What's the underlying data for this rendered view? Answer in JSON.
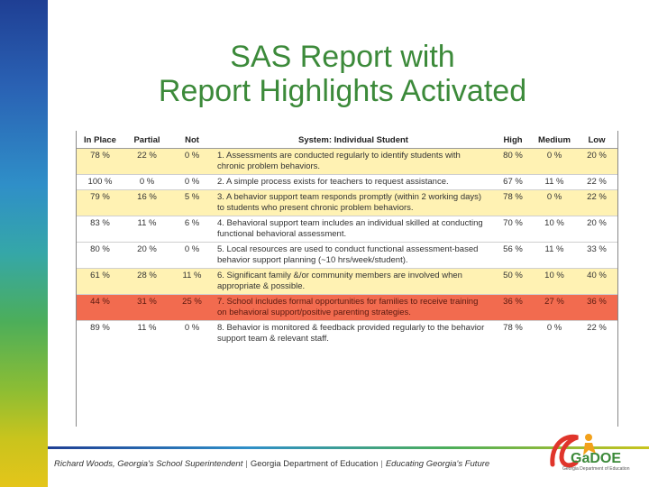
{
  "title_line1": "SAS Report with",
  "title_line2": "Report Highlights Activated",
  "columns": [
    "In Place",
    "Partial",
    "Not",
    "System: Individual Student",
    "High",
    "Medium",
    "Low"
  ],
  "rows": [
    {
      "in_place": "78 %",
      "partial": "22 %",
      "not": "0 %",
      "system": "1. Assessments are conducted regularly to identify students with chronic problem behaviors.",
      "high": "80 %",
      "medium": "0 %",
      "low": "20 %",
      "color": "yellow"
    },
    {
      "in_place": "100 %",
      "partial": "0 %",
      "not": "0 %",
      "system": "2. A simple process exists for teachers to request assistance.",
      "high": "67 %",
      "medium": "11 %",
      "low": "22 %",
      "color": "white"
    },
    {
      "in_place": "79 %",
      "partial": "16 %",
      "not": "5 %",
      "system": "3. A behavior support team responds promptly (within 2 working days) to students who present chronic problem behaviors.",
      "high": "78 %",
      "medium": "0 %",
      "low": "22 %",
      "color": "yellow"
    },
    {
      "in_place": "83 %",
      "partial": "11 %",
      "not": "6 %",
      "system": "4. Behavioral support team includes an individual skilled at conducting functional behavioral assessment.",
      "high": "70 %",
      "medium": "10 %",
      "low": "20 %",
      "color": "white"
    },
    {
      "in_place": "80 %",
      "partial": "20 %",
      "not": "0 %",
      "system": "5. Local resources are used to conduct functional assessment-based behavior support planning (~10 hrs/week/student).",
      "high": "56 %",
      "medium": "11 %",
      "low": "33 %",
      "color": "white"
    },
    {
      "in_place": "61 %",
      "partial": "28 %",
      "not": "11 %",
      "system": "6. Significant family &/or community members are involved when appropriate & possible.",
      "high": "50 %",
      "medium": "10 %",
      "low": "40 %",
      "color": "yellow"
    },
    {
      "in_place": "44 %",
      "partial": "31 %",
      "not": "25 %",
      "system": "7. School includes formal opportunities for families to receive training on behavioral support/positive parenting strategies.",
      "high": "36 %",
      "medium": "27 %",
      "low": "36 %",
      "color": "red"
    },
    {
      "in_place": "89 %",
      "partial": "11 %",
      "not": "0 %",
      "system": "8. Behavior is monitored & feedback provided regularly to the behavior support team & relevant staff.",
      "high": "78 %",
      "medium": "0 %",
      "low": "22 %",
      "color": "white"
    }
  ],
  "footer": {
    "superintendent": "Richard Woods, Georgia's School Superintendent",
    "separator": "|",
    "department": "Georgia Department of Education",
    "motto": "Educating Georgia's Future"
  },
  "logo": {
    "text": "GaDOE",
    "subtext": "Georgia Department of Education"
  },
  "colors": {
    "title": "#3c8a3a",
    "row_yellow": "#fff2b3",
    "row_red": "#f26b4f"
  }
}
